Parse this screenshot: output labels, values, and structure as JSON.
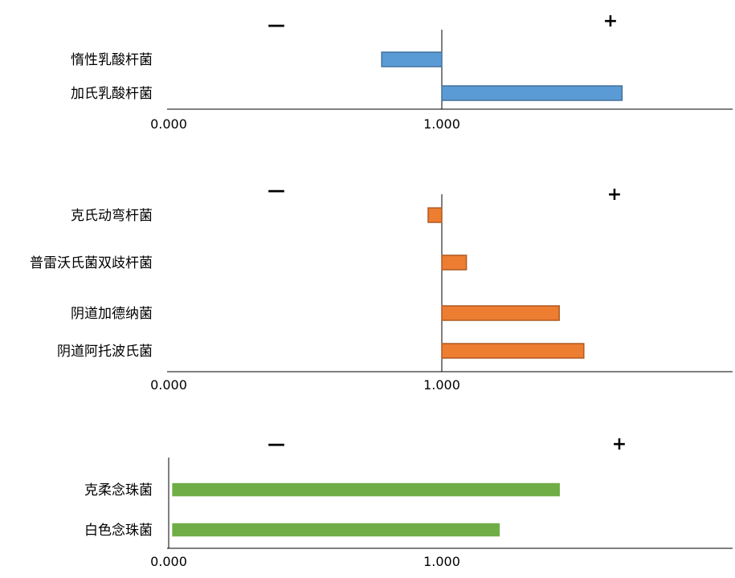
{
  "chart_data": [
    {
      "type": "bar",
      "orientation": "horizontal",
      "color": "#5b9bd5",
      "stroke": "#41719c",
      "baseline": 1.0,
      "xlim": [
        0,
        2.0
      ],
      "ticks": [
        "0.000",
        "1.000"
      ],
      "sign_minus": "—",
      "sign_plus": "+",
      "categories": [
        "惰性乳酸杆菌",
        "加氏乳酸杆菌"
      ],
      "values": [
        0.78,
        1.66
      ]
    },
    {
      "type": "bar",
      "orientation": "horizontal",
      "color": "#ed7d31",
      "stroke": "#ae5a21",
      "baseline": 1.0,
      "xlim": [
        0,
        2.0
      ],
      "ticks": [
        "0.000",
        "1.000"
      ],
      "sign_minus": "—",
      "sign_plus": "+",
      "categories": [
        "克氏动弯杆菌",
        "普雷沃氏菌双歧杆菌",
        "阴道加德纳菌",
        "阴道阿托波氏菌"
      ],
      "values": [
        0.95,
        1.09,
        1.43,
        1.52
      ]
    },
    {
      "type": "bar",
      "orientation": "horizontal",
      "color": "#70ad47",
      "stroke": "#70ad47",
      "baseline": 0.0,
      "xlim": [
        0,
        2.0
      ],
      "ticks": [
        "0.000",
        "1.000"
      ],
      "sign_minus": "—",
      "sign_plus": "+",
      "categories": [
        "克柔念珠菌",
        "白色念珠菌"
      ],
      "values": [
        1.43,
        1.21
      ]
    }
  ]
}
